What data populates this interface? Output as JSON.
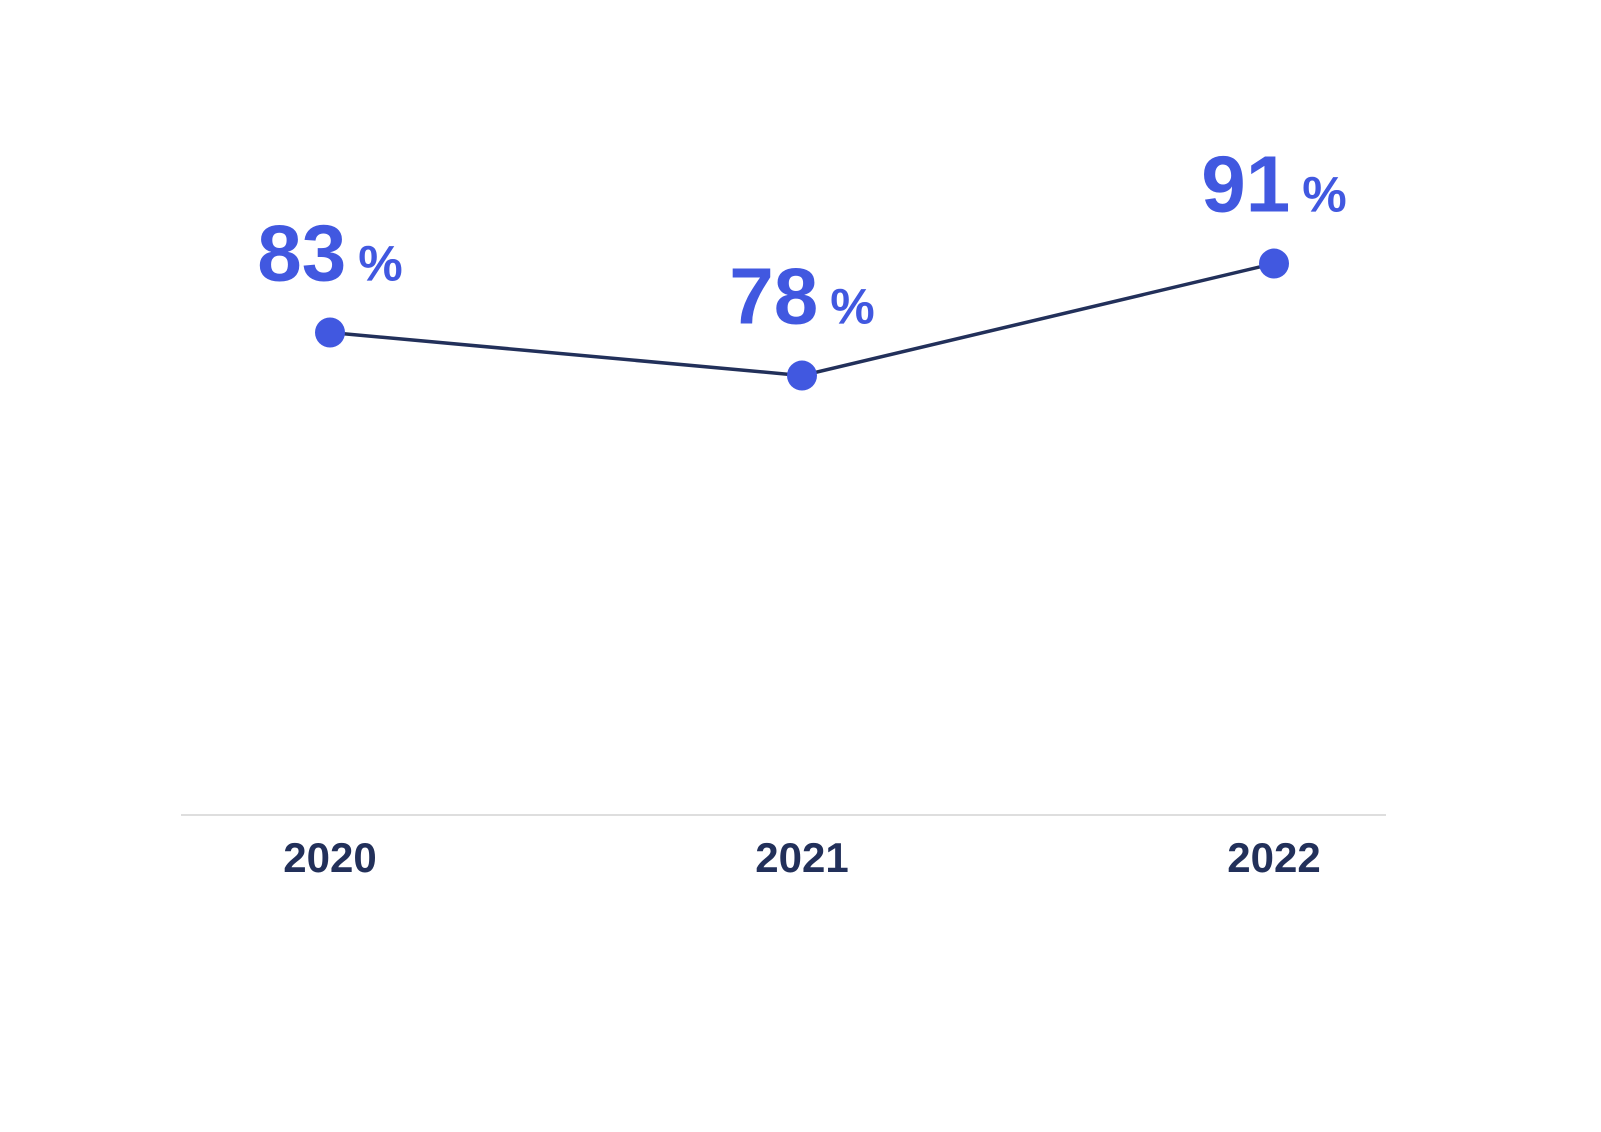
{
  "chart_data": {
    "type": "line",
    "categories": [
      "2020",
      "2021",
      "2022"
    ],
    "values": [
      83,
      78,
      91
    ],
    "value_labels": [
      "83 %",
      "78 %",
      "91 %"
    ],
    "color": "#4158e0",
    "line_color": "#22305a",
    "ylim": [
      27,
      100
    ]
  }
}
